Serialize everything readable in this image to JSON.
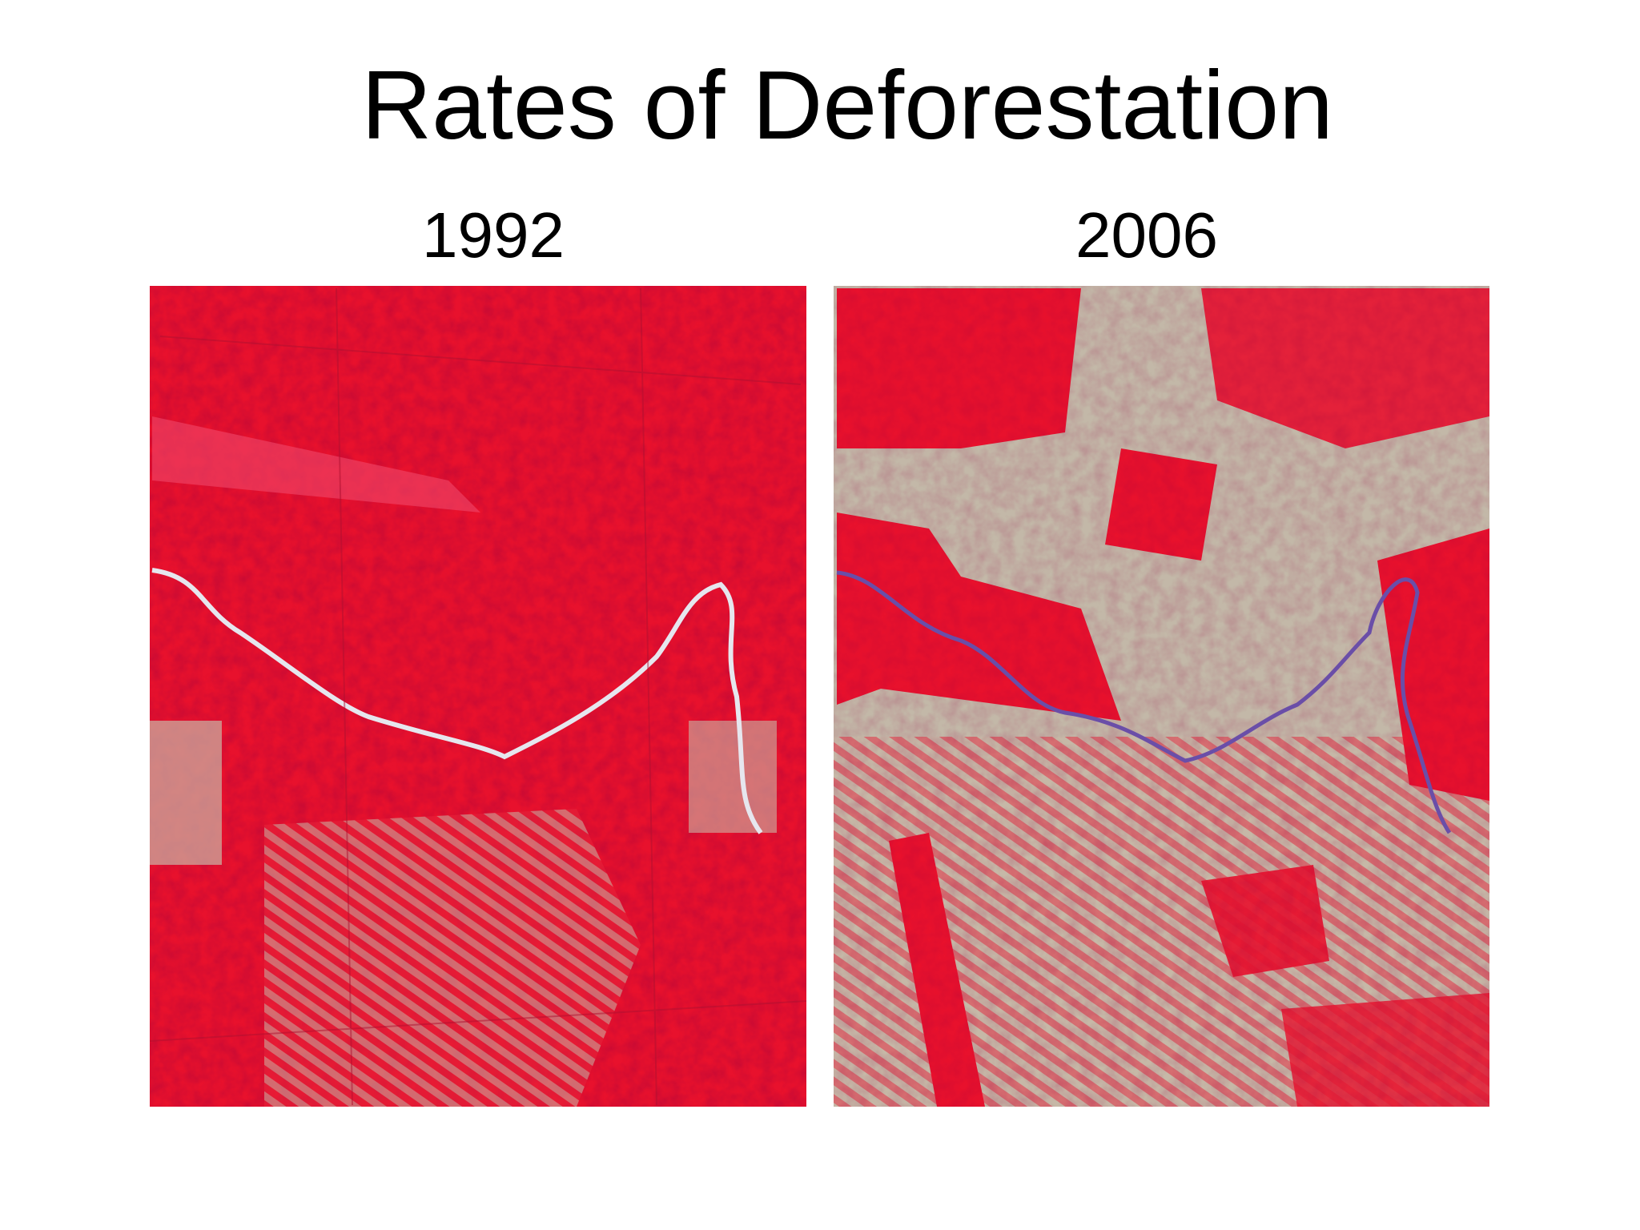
{
  "title": "Rates of Deforestation",
  "panels": [
    {
      "label": "1992"
    },
    {
      "label": "2006"
    }
  ]
}
